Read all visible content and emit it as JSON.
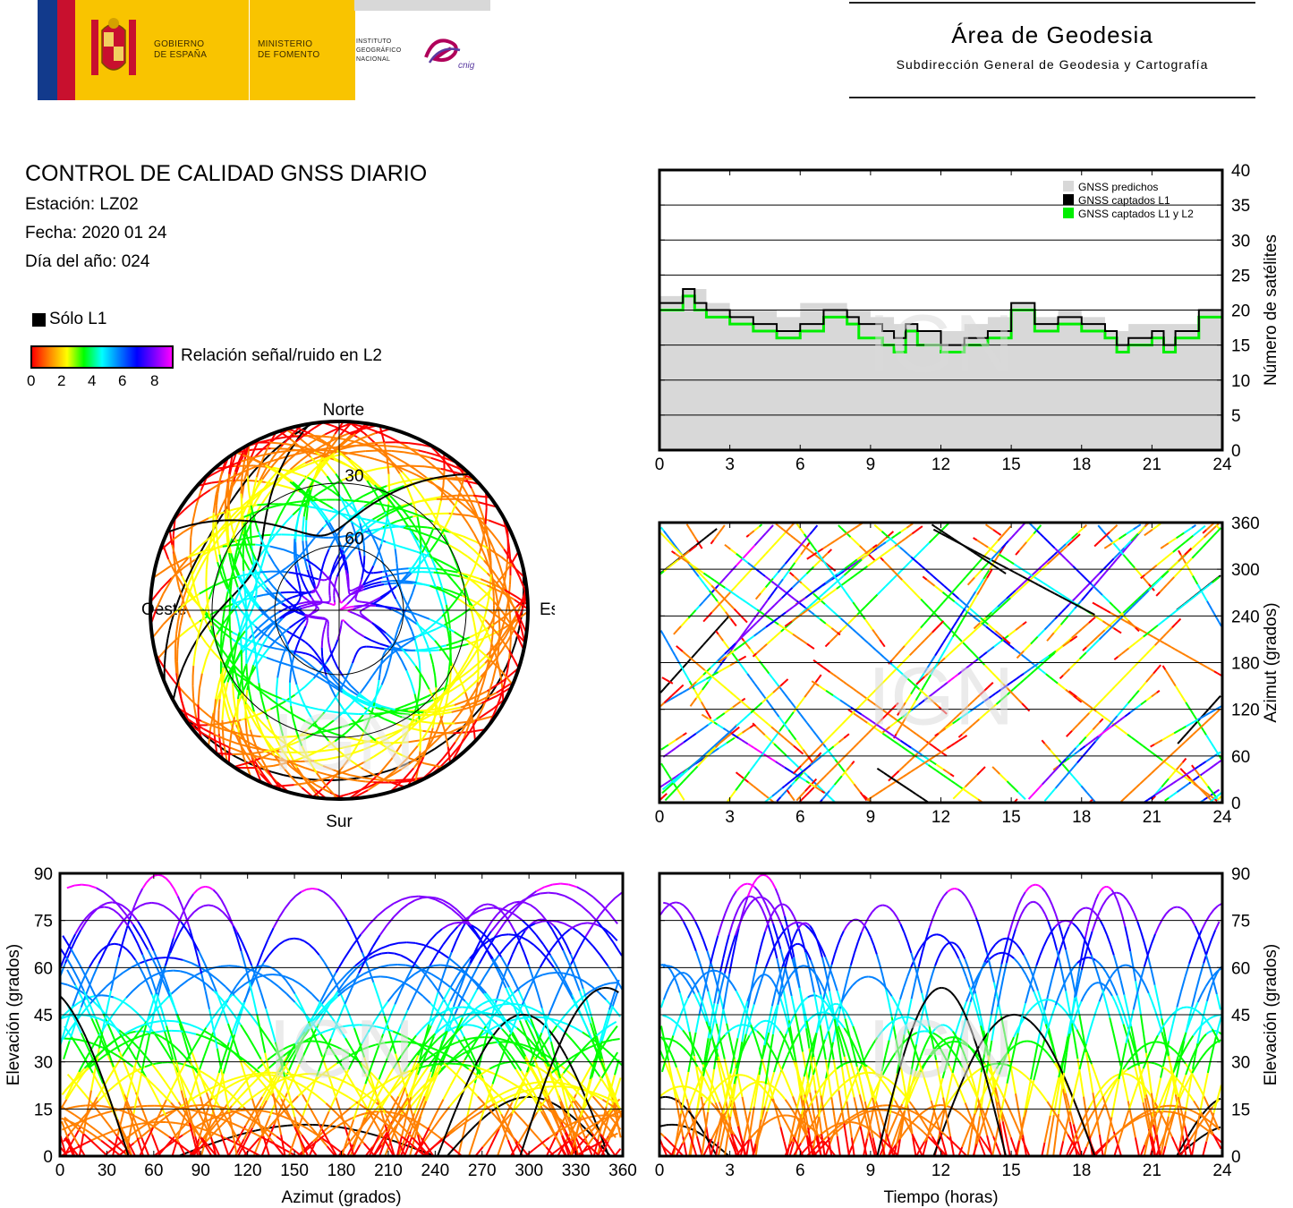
{
  "header": {
    "gov_line1": "GOBIERNO",
    "gov_line2": "DE ESPAÑA",
    "min_line1": "MINISTERIO",
    "min_line2": "DE FOMENTO",
    "ign_line1": "INSTITUTO",
    "ign_line2": "GEOGRÁFICO",
    "ign_line3": "NACIONAL",
    "cnig": "cnig",
    "area_title": "Área de Geodesia",
    "area_subtitle": "Subdirección General de Geodesia y Cartografía"
  },
  "report": {
    "title": "CONTROL DE CALIDAD GNSS DIARIO",
    "station": "Estación: LZ02",
    "date": "Fecha: 2020 01 24",
    "doy": "Día del año: 024",
    "legend_l1": "Sólo L1",
    "snr_label": "Relación señal/ruido en L2",
    "snr_ticks": [
      "0",
      "2",
      "4",
      "6",
      "8"
    ]
  },
  "watermark": "IGN",
  "colors": {
    "predicted": "#d8d8d8",
    "l1": "#000000",
    "l1l2": "#00ee00",
    "snr_scale": [
      "#ff0000",
      "#ff8000",
      "#ffff00",
      "#00ff00",
      "#00ffff",
      "#0080ff",
      "#0000ff",
      "#8000ff",
      "#ff00ff"
    ]
  },
  "chart_data": [
    {
      "id": "sat-count",
      "type": "line",
      "xlim": [
        0,
        24
      ],
      "xticks": [
        "0",
        "3",
        "6",
        "9",
        "12",
        "15",
        "18",
        "21",
        "24"
      ],
      "ylim": [
        0,
        40
      ],
      "yticks": [
        "0",
        "5",
        "10",
        "15",
        "20",
        "25",
        "30",
        "35",
        "40"
      ],
      "ylabel": "Número de satélites",
      "grid": true,
      "legend_position": "top-right",
      "series": [
        {
          "name": "GNSS predichos",
          "x": [
            0,
            1,
            2,
            3,
            4,
            5,
            6,
            7,
            8,
            9,
            10,
            11,
            12,
            13,
            14,
            15,
            16,
            17,
            18,
            19,
            20,
            21,
            22,
            23,
            24
          ],
          "values": [
            22,
            23,
            21,
            20,
            20,
            19,
            21,
            21,
            20,
            19,
            18,
            17,
            17,
            18,
            19,
            21,
            19,
            20,
            19,
            17,
            18,
            18,
            18,
            20,
            20
          ]
        },
        {
          "name": "GNSS captados L1",
          "x": [
            0,
            0.5,
            1,
            1.5,
            2,
            3,
            4,
            5,
            6,
            7,
            8,
            8.5,
            9,
            9.5,
            10,
            10.5,
            11,
            12,
            13,
            14,
            15,
            16,
            17,
            18,
            19,
            19.5,
            20,
            21,
            21.5,
            22,
            23,
            24
          ],
          "values": [
            21,
            21,
            23,
            21,
            20,
            19,
            18,
            17,
            18,
            20,
            19,
            18,
            18,
            17,
            16,
            18,
            17,
            15,
            16,
            17,
            21,
            18,
            19,
            18,
            17,
            15,
            16,
            17,
            15,
            17,
            20,
            19
          ]
        },
        {
          "name": "GNSS captados L1 y L2",
          "x": [
            0,
            0.5,
            1,
            1.5,
            2,
            3,
            4,
            5,
            6,
            7,
            8,
            8.5,
            9,
            9.5,
            10,
            10.5,
            11,
            12,
            13,
            14,
            15,
            16,
            17,
            18,
            19,
            19.5,
            20,
            21,
            21.5,
            22,
            23,
            24
          ],
          "values": [
            20,
            20,
            22,
            20,
            19,
            18,
            17,
            16,
            17,
            19,
            18,
            16,
            16,
            15,
            14,
            17,
            15,
            14,
            15,
            16,
            20,
            17,
            18,
            17,
            16,
            14,
            15,
            16,
            14,
            16,
            19,
            18
          ]
        }
      ]
    },
    {
      "id": "skyplot",
      "type": "scatter",
      "cardinals": {
        "north": "Norte",
        "south": "Sur",
        "east": "Este",
        "west": "Oeste"
      },
      "elevation_rings": [
        "30",
        "60"
      ]
    },
    {
      "id": "azimuth-time",
      "type": "scatter",
      "xlim": [
        0,
        24
      ],
      "xticks": [
        "0",
        "3",
        "6",
        "9",
        "12",
        "15",
        "18",
        "21",
        "24"
      ],
      "ylim": [
        0,
        360
      ],
      "yticks": [
        "0",
        "60",
        "120",
        "180",
        "240",
        "300",
        "360"
      ],
      "ylabel": "Azimut (grados)",
      "grid": true
    },
    {
      "id": "elev-azimuth",
      "type": "scatter",
      "xlim": [
        0,
        360
      ],
      "xticks": [
        "0",
        "30",
        "60",
        "90",
        "120",
        "150",
        "180",
        "210",
        "240",
        "270",
        "300",
        "330",
        "360"
      ],
      "ylim": [
        0,
        90
      ],
      "yticks": [
        "0",
        "15",
        "30",
        "45",
        "60",
        "75",
        "90"
      ],
      "xlabel": "Azimut (grados)",
      "ylabel": "Elevación (grados)",
      "grid": true
    },
    {
      "id": "elev-time",
      "type": "scatter",
      "xlim": [
        0,
        24
      ],
      "xticks": [
        "0",
        "3",
        "6",
        "9",
        "12",
        "15",
        "18",
        "21",
        "24"
      ],
      "ylim": [
        0,
        90
      ],
      "yticks": [
        "0",
        "15",
        "30",
        "45",
        "60",
        "75",
        "90"
      ],
      "xlabel": "Tiempo (horas)",
      "ylabel": "Elevación (grados)",
      "grid": true
    }
  ]
}
